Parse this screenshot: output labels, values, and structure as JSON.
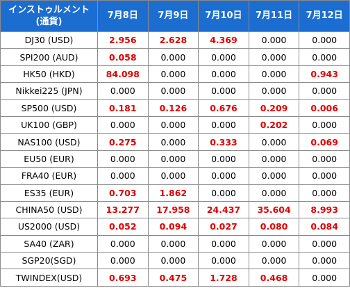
{
  "table": {
    "header": {
      "instrument_line1": "インストゥルメント",
      "instrument_line2": "(通貨)",
      "dates": [
        "7月8日",
        "7月9日",
        "7月10日",
        "7月11日",
        "7月12日"
      ]
    },
    "rows": [
      {
        "name": "DJ30 (USD)",
        "values": [
          "2.956",
          "2.628",
          "4.369",
          "0.000",
          "0.000"
        ]
      },
      {
        "name": "SPI200 (AUD)",
        "values": [
          "0.058",
          "0.000",
          "0.000",
          "0.000",
          "0.000"
        ]
      },
      {
        "name": "HK50 (HKD)",
        "values": [
          "84.098",
          "0.000",
          "0.000",
          "0.000",
          "0.943"
        ]
      },
      {
        "name": "Nikkei225 (JPN)",
        "values": [
          "0.000",
          "0.000",
          "0.000",
          "0.000",
          "0.000"
        ]
      },
      {
        "name": "SP500 (USD)",
        "values": [
          "0.181",
          "0.126",
          "0.676",
          "0.209",
          "0.006"
        ]
      },
      {
        "name": "UK100 (GBP)",
        "values": [
          "0.000",
          "0.000",
          "0.000",
          "0.202",
          "0.000"
        ]
      },
      {
        "name": "NAS100 (USD)",
        "values": [
          "0.275",
          "0.000",
          "0.333",
          "0.000",
          "0.069"
        ]
      },
      {
        "name": "EU50 (EUR)",
        "values": [
          "0.000",
          "0.000",
          "0.000",
          "0.000",
          "0.000"
        ]
      },
      {
        "name": "FRA40 (EUR)",
        "values": [
          "0.000",
          "0.000",
          "0.000",
          "0.000",
          "0.000"
        ]
      },
      {
        "name": "ES35 (EUR)",
        "values": [
          "0.703",
          "1.862",
          "0.000",
          "0.000",
          "0.000"
        ]
      },
      {
        "name": "CHINA50 (USD)",
        "values": [
          "13.277",
          "17.958",
          "24.437",
          "35.604",
          "8.993"
        ]
      },
      {
        "name": "US2000 (USD)",
        "values": [
          "0.052",
          "0.094",
          "0.027",
          "0.080",
          "0.084"
        ]
      },
      {
        "name": "SA40 (ZAR)",
        "values": [
          "0.000",
          "0.000",
          "0.000",
          "0.000",
          "0.000"
        ]
      },
      {
        "name": "SGP20(SGD)",
        "values": [
          "0.000",
          "0.000",
          "0.000",
          "0.000",
          "0.000"
        ]
      },
      {
        "name": "TWINDEX(USD)",
        "values": [
          "0.693",
          "0.475",
          "1.728",
          "0.468",
          "0.000"
        ]
      }
    ]
  },
  "colors": {
    "header_bg": "#1c6dd0",
    "header_text": "#ffffff",
    "positive_value": "#e00000",
    "zero_value": "#000000",
    "border": "#8a8a8a"
  }
}
